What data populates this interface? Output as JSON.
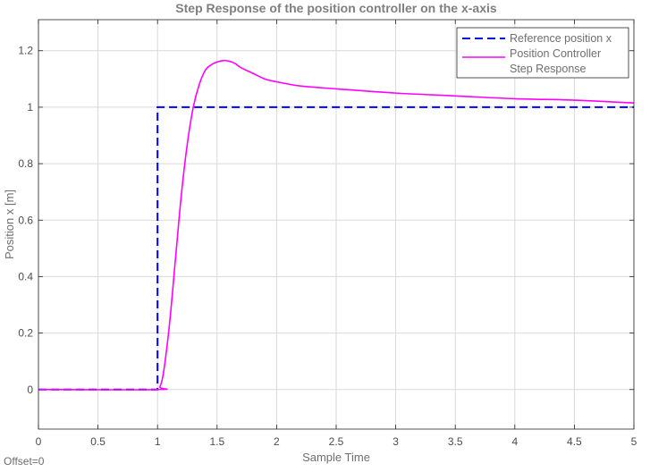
{
  "footer_text": "Offset=0",
  "chart_data": {
    "type": "line",
    "title": "Step Response of  the position controller on the x-axis",
    "xlabel": "Sample Time",
    "ylabel": "Position x [m]",
    "xlim": [
      0,
      5
    ],
    "ylim": [
      -0.14,
      1.31
    ],
    "x_ticks": [
      0,
      0.5,
      1,
      1.5,
      2,
      2.5,
      3,
      3.5,
      4,
      4.5,
      5
    ],
    "x_tick_labels": [
      "0",
      "0.5",
      "1",
      "1.5",
      "2",
      "2.5",
      "3",
      "3.5",
      "4",
      "4.5",
      "5"
    ],
    "y_ticks": [
      0,
      0.2,
      0.4,
      0.6,
      0.8,
      1,
      1.2
    ],
    "y_tick_labels": [
      "0",
      "0.2",
      "0.4",
      "0.6",
      "0.8",
      "1",
      "1.2"
    ],
    "grid": true,
    "legend_position": "top-right",
    "series": [
      {
        "name": "Reference position x",
        "color": "#0000ff",
        "style": "dashed",
        "x": [
          0,
          1,
          1,
          5
        ],
        "y": [
          0,
          0,
          1,
          1
        ]
      },
      {
        "name": "Position Controller Step Response",
        "legend_lines": [
          "Position Controller",
          "Step Response"
        ],
        "color": "#ff00ff",
        "style": "solid",
        "x": [
          0,
          1.0,
          1.02,
          1.05,
          1.1,
          1.15,
          1.2,
          1.25,
          1.3,
          1.35,
          1.4,
          1.45,
          1.5,
          1.55,
          1.6,
          1.65,
          1.7,
          1.8,
          1.9,
          2.0,
          2.2,
          2.5,
          3.0,
          3.5,
          4.0,
          4.5,
          5.0
        ],
        "y": [
          0,
          0,
          0.01,
          0.06,
          0.23,
          0.46,
          0.69,
          0.87,
          1.0,
          1.08,
          1.13,
          1.15,
          1.16,
          1.165,
          1.163,
          1.155,
          1.14,
          1.12,
          1.1,
          1.09,
          1.075,
          1.065,
          1.05,
          1.04,
          1.03,
          1.025,
          1.015
        ]
      }
    ]
  }
}
